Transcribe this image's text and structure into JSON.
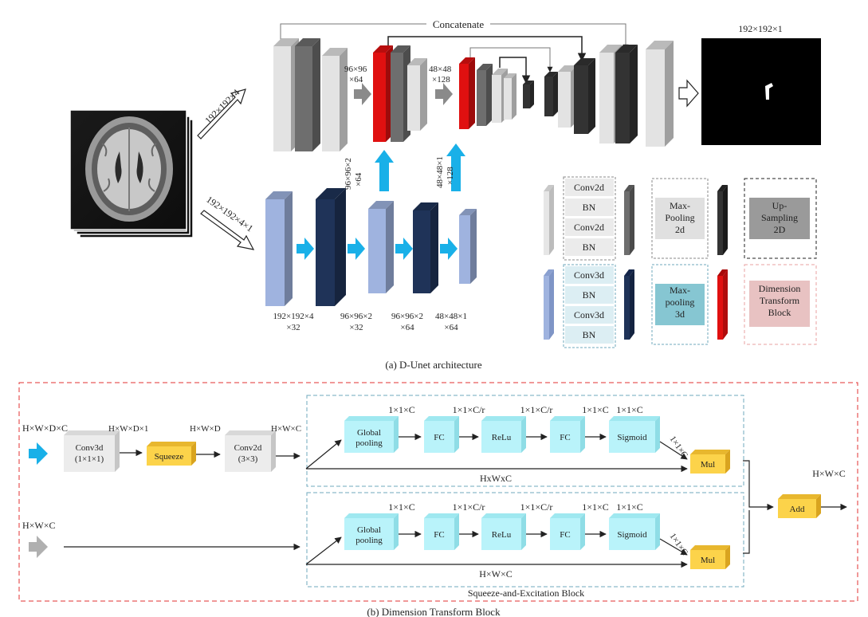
{
  "part_a": {
    "caption": "(a) D-Unet architecture",
    "concat_label": "Concatenate",
    "output_label": "192×192×1",
    "input2d_label": "192×192×4",
    "input3d_label": "192×192×4×1",
    "skip1_label": "96×96\n×64",
    "skip2_label": "48×48\n×128",
    "dt1_label": "96×96×2\n×64",
    "dt2_label": "48×48×1\n×128",
    "enc3d_labels": [
      "192×192×4\n×32",
      "96×96×2\n×32",
      "96×96×2\n×64",
      "48×48×1\n×64"
    ]
  },
  "legend": {
    "conv2d_block": [
      "Conv2d",
      "BN",
      "Conv2d",
      "BN"
    ],
    "conv3d_block": [
      "Conv3d",
      "BN",
      "Conv3d",
      "BN"
    ],
    "maxpool2d": "Max-\nPooling\n2d",
    "upsampling": "Up-\nSampling\n2D",
    "maxpool3d": "Max-\npooling\n3d",
    "dimension_transform": "Dimension\nTransform\nBlock"
  },
  "part_b": {
    "caption": "(b) Dimension Transform Block",
    "se_caption": "Squeeze-and-Excitation Block",
    "in3d_label": "H×W×D×C",
    "in2d_label": "H×W×C",
    "conv3d": "Conv3d\n(1×1×1)",
    "conv3d_out": "H×W×D×1",
    "squeeze": "Squeeze",
    "squeeze_out": "H×W×D",
    "conv2d": "Conv2d\n(3×3)",
    "conv2d_out": "H×W×C",
    "se_top": {
      "nodes": [
        "Global\npooling",
        "FC",
        "ReLu",
        "FC",
        "Sigmoid"
      ],
      "dims": [
        "1×1×C",
        "1×1×C/r",
        "1×1×C/r",
        "1×1×C"
      ],
      "mul": "Mul",
      "mul_dim": "1×1×C",
      "bypass": "HxWxC"
    },
    "se_bottom": {
      "nodes": [
        "Global\npooling",
        "FC",
        "ReLu",
        "FC",
        "Sigmoid"
      ],
      "dims": [
        "1×1×C",
        "1×1×C/r",
        "1×1×C/r",
        "1×1×C"
      ],
      "mul": "Mul",
      "mul_dim": "1×1×C",
      "bypass": "H×W×C"
    },
    "add": "Add",
    "add_out": "H×W×C"
  },
  "colors": {
    "conv2d_light": "#e3e3e3",
    "maxpool2d_dark": "#6e6e6e",
    "upsample_black": "#333333",
    "dimension_red": "#e01010",
    "conv3d_light_blue": "#9fb3df",
    "maxpool3d_navy": "#1f3358",
    "arrow_cyan": "#19b0e8",
    "arrow_grey": "#8a8a8a",
    "se_cyan": "#b9f3fa",
    "squeeze_yellow": "#fcd34a",
    "dashed_red": "#e03030",
    "dashed_blue": "#6fa8bd",
    "legend_teal": "#86c6d2",
    "legend_pink": "#e8c2c2",
    "legend_grey": "#9a9a9a",
    "legend_lightgrey": "#e0e0e0"
  }
}
